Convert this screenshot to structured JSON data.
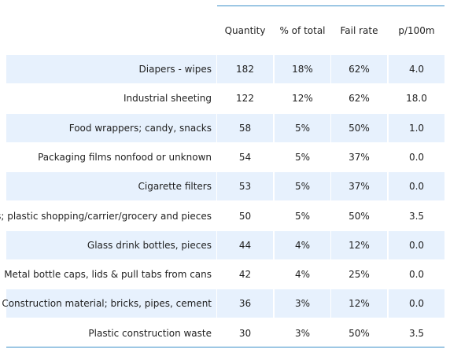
{
  "chart_data": {
    "type": "table",
    "columns": [
      "",
      "Quantity",
      "% of total",
      "Fail rate",
      "p/100m"
    ],
    "rows": [
      {
        "item": "Diapers - wipes",
        "quantity": "182",
        "pct_total": "18%",
        "fail_rate": "62%",
        "p100m": "4.0"
      },
      {
        "item": "Industrial sheeting",
        "quantity": "122",
        "pct_total": "12%",
        "fail_rate": "62%",
        "p100m": "18.0"
      },
      {
        "item": "Food wrappers; candy, snacks",
        "quantity": "58",
        "pct_total": "5%",
        "fail_rate": "50%",
        "p100m": "1.0"
      },
      {
        "item": "Packaging films nonfood or unknown",
        "quantity": "54",
        "pct_total": "5%",
        "fail_rate": "37%",
        "p100m": "0.0"
      },
      {
        "item": "Cigarette filters",
        "quantity": "53",
        "pct_total": "5%",
        "fail_rate": "37%",
        "p100m": "0.0"
      },
      {
        "item": "Bags; plastic shopping/carrier/grocery and pieces",
        "quantity": "50",
        "pct_total": "5%",
        "fail_rate": "50%",
        "p100m": "3.5"
      },
      {
        "item": "Glass drink bottles, pieces",
        "quantity": "44",
        "pct_total": "4%",
        "fail_rate": "12%",
        "p100m": "0.0"
      },
      {
        "item": "Metal bottle caps, lids & pull tabs from cans",
        "quantity": "42",
        "pct_total": "4%",
        "fail_rate": "25%",
        "p100m": "0.0"
      },
      {
        "item": "Construction material; bricks, pipes, cement",
        "quantity": "36",
        "pct_total": "3%",
        "fail_rate": "12%",
        "p100m": "0.0"
      },
      {
        "item": "Plastic construction waste",
        "quantity": "30",
        "pct_total": "3%",
        "fail_rate": "50%",
        "p100m": "3.5"
      }
    ]
  },
  "colors": {
    "stripe": "#e7f1fd",
    "rule": "#3a8fc8"
  }
}
